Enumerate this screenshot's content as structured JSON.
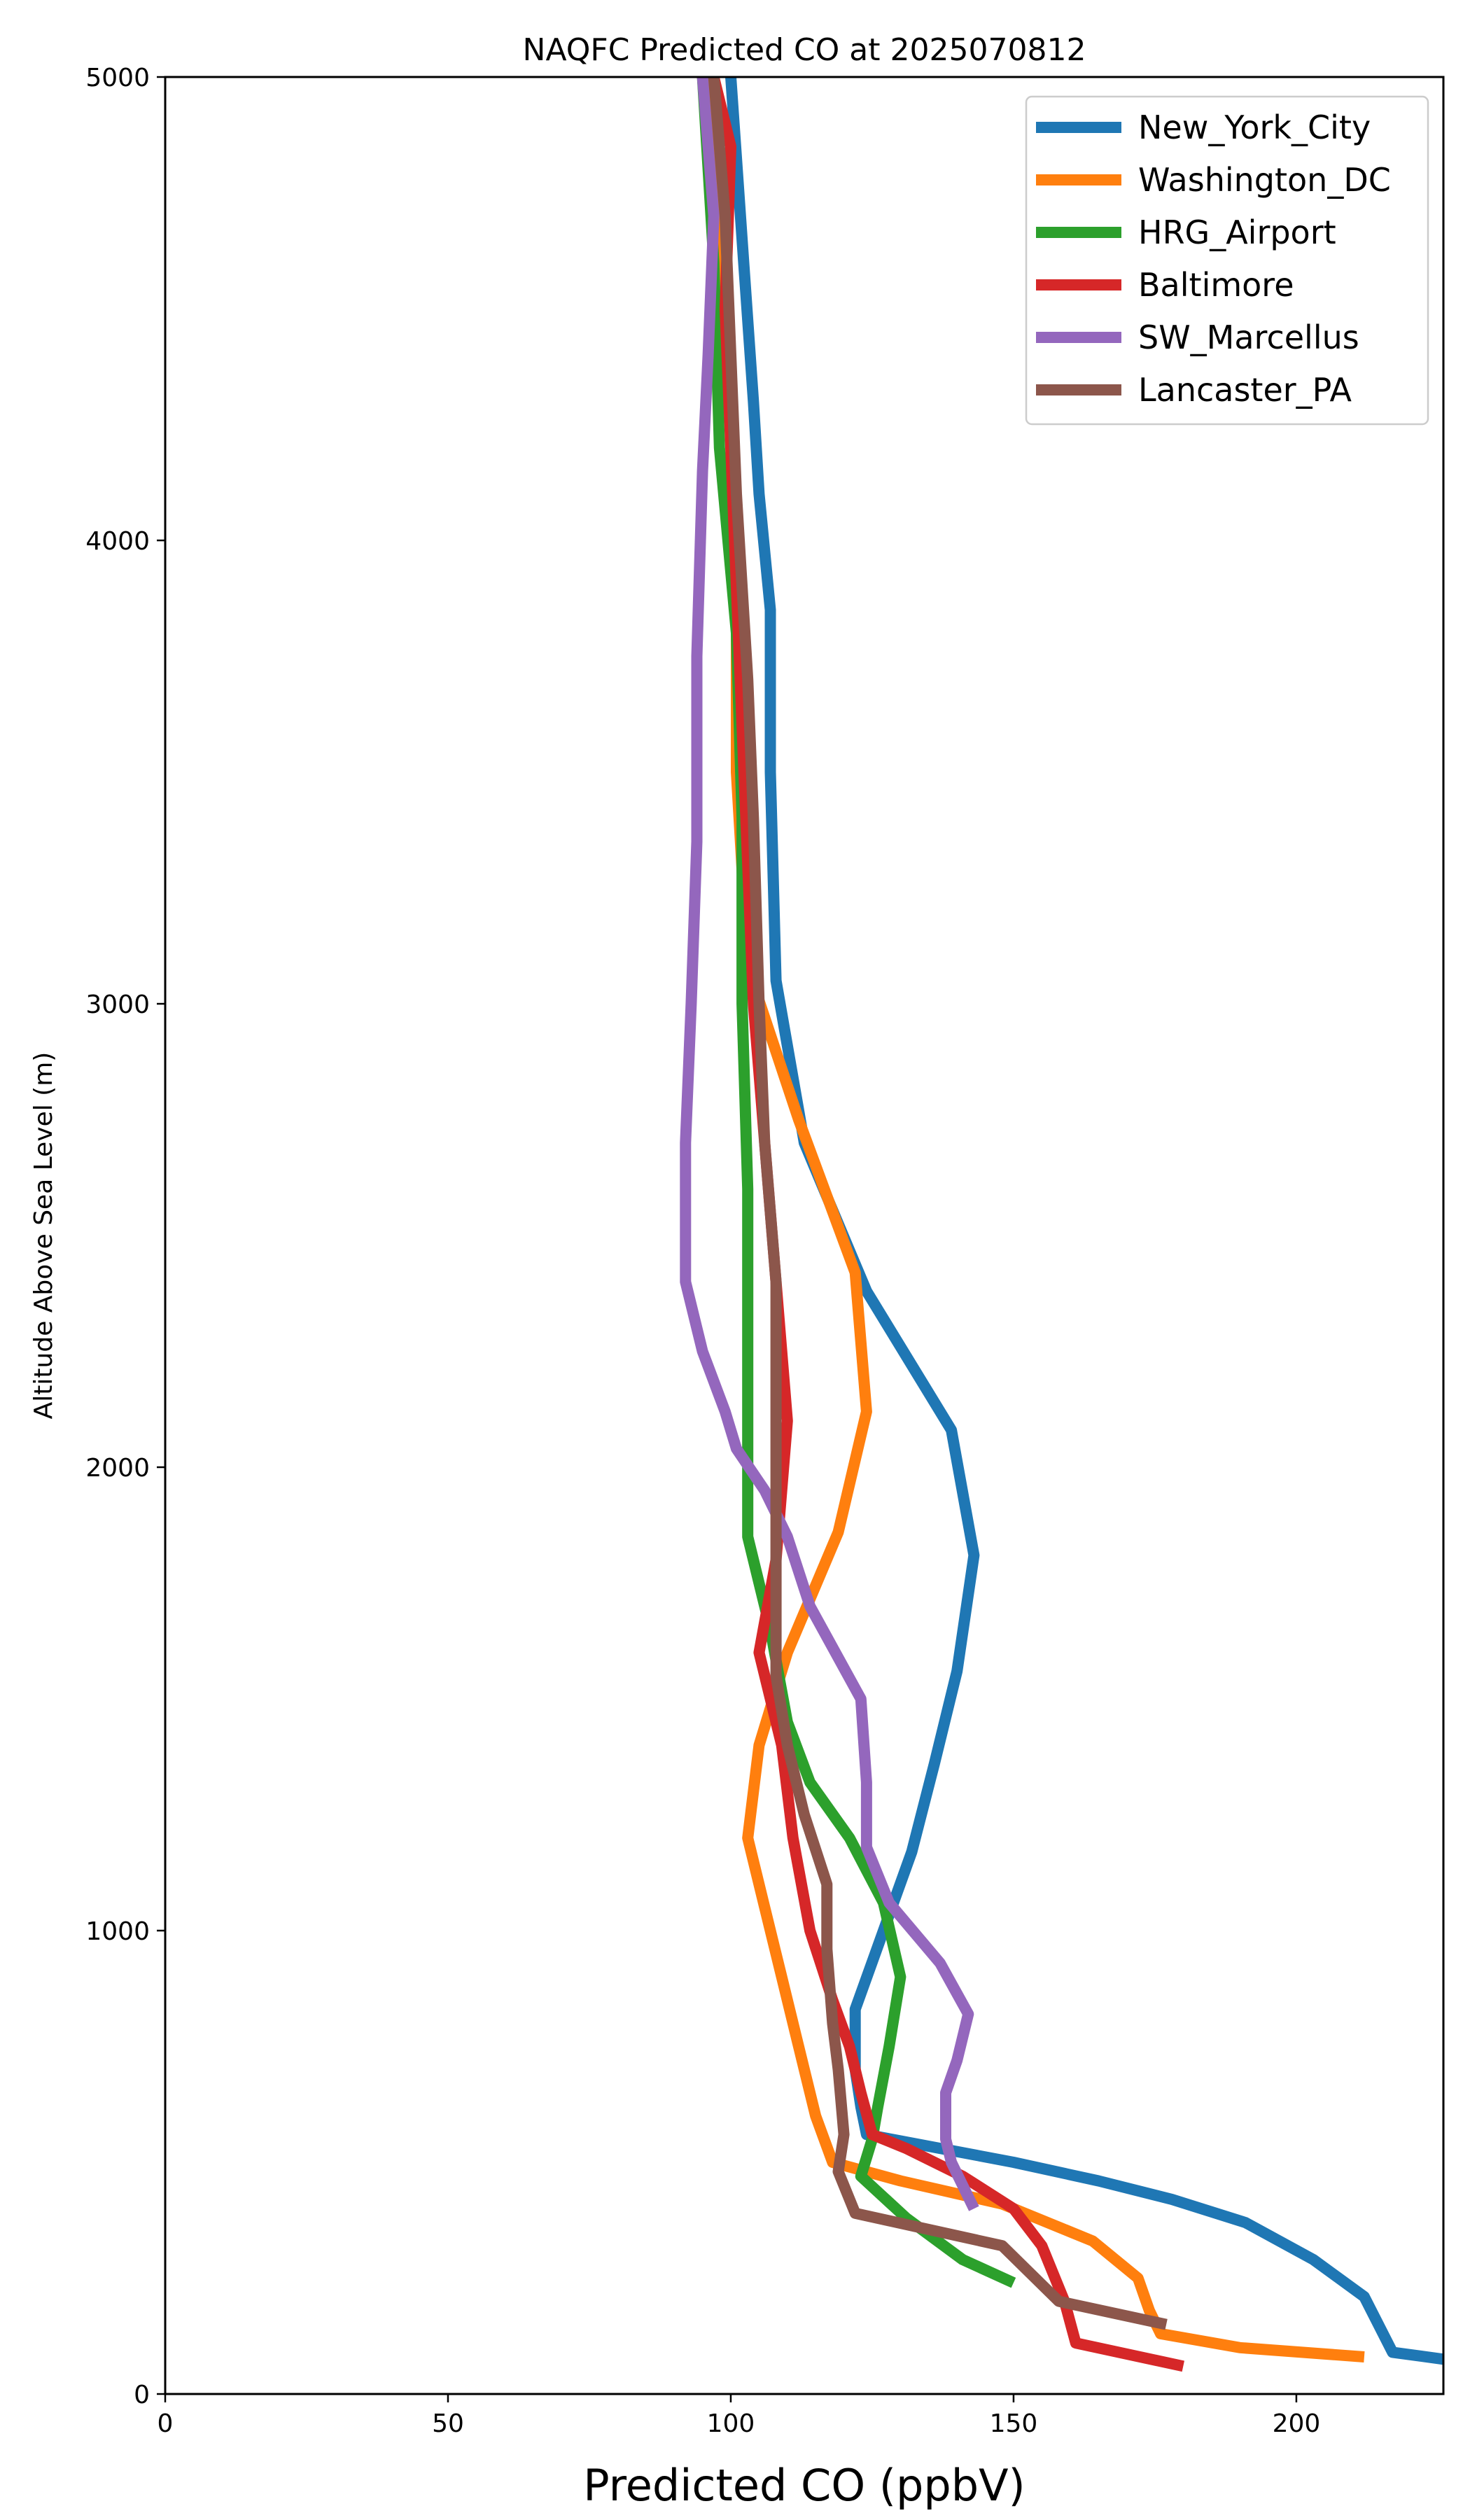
{
  "chart_data": {
    "type": "line",
    "title": "NAQFC Predicted CO at 2025070812",
    "xlabel": "Predicted CO (ppbV)",
    "ylabel": "Altitude Above Sea Level (m)",
    "xlim": [
      0,
      226
    ],
    "ylim": [
      0,
      5000
    ],
    "xticks": [
      0,
      50,
      100,
      150,
      200
    ],
    "yticks": [
      0,
      1000,
      2000,
      3000,
      4000,
      5000
    ],
    "grid": false,
    "legend_position": "top-right",
    "series": [
      {
        "name": "New_York_City",
        "color": "#1f77b4",
        "points": [
          [
            226,
            75
          ],
          [
            217,
            90
          ],
          [
            212,
            210
          ],
          [
            203,
            290
          ],
          [
            191,
            370
          ],
          [
            178,
            420
          ],
          [
            165,
            460
          ],
          [
            150,
            500
          ],
          [
            137,
            530
          ],
          [
            124,
            560
          ],
          [
            123,
            620
          ],
          [
            122,
            700
          ],
          [
            122,
            830
          ],
          [
            127,
            1000
          ],
          [
            132,
            1170
          ],
          [
            136,
            1360
          ],
          [
            140,
            1560
          ],
          [
            143,
            1810
          ],
          [
            139,
            2080
          ],
          [
            124,
            2380
          ],
          [
            113,
            2700
          ],
          [
            108,
            3050
          ],
          [
            107,
            3500
          ],
          [
            107,
            3850
          ],
          [
            105,
            4100
          ],
          [
            104,
            4300
          ],
          [
            102,
            4650
          ],
          [
            100,
            5000
          ]
        ]
      },
      {
        "name": "Washington_DC",
        "color": "#ff7f0e",
        "points": [
          [
            212,
            80
          ],
          [
            190,
            100
          ],
          [
            176,
            130
          ],
          [
            174,
            180
          ],
          [
            172,
            250
          ],
          [
            164,
            330
          ],
          [
            148,
            410
          ],
          [
            130,
            460
          ],
          [
            118,
            500
          ],
          [
            115,
            600
          ],
          [
            112,
            750
          ],
          [
            109,
            900
          ],
          [
            106,
            1050
          ],
          [
            103,
            1200
          ],
          [
            105,
            1400
          ],
          [
            110,
            1600
          ],
          [
            119,
            1860
          ],
          [
            124,
            2120
          ],
          [
            122,
            2420
          ],
          [
            112,
            2750
          ],
          [
            103,
            3080
          ],
          [
            101,
            3500
          ],
          [
            101,
            4000
          ],
          [
            99,
            4500
          ],
          [
            97,
            5000
          ]
        ]
      },
      {
        "name": "HRG_Airport",
        "color": "#2ca02c",
        "points": [
          [
            150,
            240
          ],
          [
            141,
            290
          ],
          [
            131,
            380
          ],
          [
            123,
            470
          ],
          [
            125,
            550
          ],
          [
            126,
            620
          ],
          [
            128,
            750
          ],
          [
            130,
            900
          ],
          [
            127,
            1060
          ],
          [
            121,
            1200
          ],
          [
            114,
            1320
          ],
          [
            110,
            1450
          ],
          [
            107,
            1650
          ],
          [
            103,
            1850
          ],
          [
            103,
            2200
          ],
          [
            103,
            2600
          ],
          [
            102,
            3000
          ],
          [
            102,
            3400
          ],
          [
            101,
            3800
          ],
          [
            98,
            4200
          ],
          [
            97,
            4600
          ],
          [
            95,
            5000
          ]
        ]
      },
      {
        "name": "Baltimore",
        "color": "#d62728",
        "points": [
          [
            180,
            60
          ],
          [
            161,
            110
          ],
          [
            159,
            200
          ],
          [
            155,
            320
          ],
          [
            150,
            400
          ],
          [
            141,
            470
          ],
          [
            131,
            530
          ],
          [
            125,
            560
          ],
          [
            123,
            650
          ],
          [
            121,
            750
          ],
          [
            118,
            850
          ],
          [
            114,
            1000
          ],
          [
            111,
            1200
          ],
          [
            109,
            1400
          ],
          [
            105,
            1600
          ],
          [
            108,
            1800
          ],
          [
            110,
            2100
          ],
          [
            108,
            2400
          ],
          [
            106,
            2700
          ],
          [
            104,
            3000
          ],
          [
            103,
            3300
          ],
          [
            102,
            3600
          ],
          [
            101,
            3900
          ],
          [
            100,
            4200
          ],
          [
            99,
            4500
          ],
          [
            100,
            4850
          ],
          [
            97,
            5000
          ]
        ]
      },
      {
        "name": "SW_Marcellus",
        "color": "#9467bd",
        "points": [
          [
            143,
            400
          ],
          [
            139,
            500
          ],
          [
            138,
            550
          ],
          [
            138,
            650
          ],
          [
            140,
            720
          ],
          [
            142,
            820
          ],
          [
            137,
            930
          ],
          [
            128,
            1060
          ],
          [
            124,
            1180
          ],
          [
            124,
            1320
          ],
          [
            123,
            1500
          ],
          [
            114,
            1700
          ],
          [
            110,
            1850
          ],
          [
            106,
            1950
          ],
          [
            101,
            2040
          ],
          [
            99,
            2120
          ],
          [
            95,
            2250
          ],
          [
            92,
            2400
          ],
          [
            92,
            2700
          ],
          [
            93,
            3000
          ],
          [
            94,
            3350
          ],
          [
            94,
            3750
          ],
          [
            95,
            4150
          ],
          [
            96,
            4400
          ],
          [
            97,
            4700
          ],
          [
            95,
            5000
          ]
        ]
      },
      {
        "name": "Lancaster_PA",
        "color": "#8c564b",
        "points": [
          [
            177,
            150
          ],
          [
            158,
            200
          ],
          [
            148,
            320
          ],
          [
            122,
            390
          ],
          [
            119,
            480
          ],
          [
            120,
            560
          ],
          [
            119,
            700
          ],
          [
            118,
            800
          ],
          [
            117,
            960
          ],
          [
            117,
            1100
          ],
          [
            113,
            1250
          ],
          [
            110,
            1400
          ],
          [
            108,
            1550
          ],
          [
            108,
            1700
          ],
          [
            108,
            1900
          ],
          [
            108,
            2100
          ],
          [
            108,
            2400
          ],
          [
            106,
            2700
          ],
          [
            105,
            3000
          ],
          [
            104,
            3400
          ],
          [
            103,
            3700
          ],
          [
            101,
            4100
          ],
          [
            100,
            4400
          ],
          [
            99,
            4700
          ],
          [
            97,
            5000
          ]
        ]
      }
    ]
  }
}
